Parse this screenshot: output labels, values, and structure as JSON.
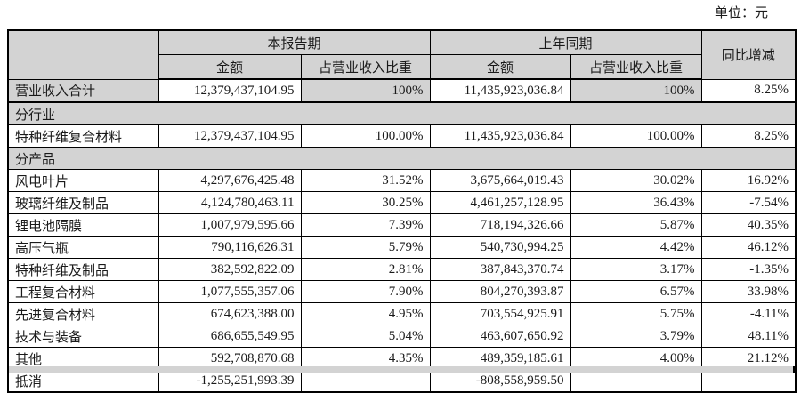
{
  "unit_label": "单位：元",
  "colors": {
    "header_bg": "#d3d3d3",
    "row_bg": "#ffffff",
    "border": "#000000"
  },
  "table": {
    "header": {
      "current_period": "本报告期",
      "prior_period": "上年同期",
      "yoy_change": "同比增减",
      "amount": "金额",
      "revenue_share": "占营业收入比重"
    },
    "rows": [
      {
        "type": "total",
        "label": "营业收入合计",
        "cur_amount": "12,379,437,104.95",
        "cur_share": "100%",
        "prior_amount": "11,435,923,036.84",
        "prior_share": "100%",
        "yoy": "8.25%"
      },
      {
        "type": "section",
        "label": "分行业"
      },
      {
        "type": "data",
        "label": "特种纤维复合材料",
        "cur_amount": "12,379,437,104.95",
        "cur_share": "100.00%",
        "prior_amount": "11,435,923,036.84",
        "prior_share": "100.00%",
        "yoy": "8.25%"
      },
      {
        "type": "section",
        "label": "分产品"
      },
      {
        "type": "data",
        "label": "风电叶片",
        "cur_amount": "4,297,676,425.48",
        "cur_share": "31.52%",
        "prior_amount": "3,675,664,019.43",
        "prior_share": "30.02%",
        "yoy": "16.92%"
      },
      {
        "type": "data",
        "label": "玻璃纤维及制品",
        "cur_amount": "4,124,780,463.11",
        "cur_share": "30.25%",
        "prior_amount": "4,461,257,128.95",
        "prior_share": "36.43%",
        "yoy": "-7.54%"
      },
      {
        "type": "data",
        "label": "锂电池隔膜",
        "cur_amount": "1,007,979,595.66",
        "cur_share": "7.39%",
        "prior_amount": "718,194,326.66",
        "prior_share": "5.87%",
        "yoy": "40.35%"
      },
      {
        "type": "data",
        "label": "高压气瓶",
        "cur_amount": "790,116,626.31",
        "cur_share": "5.79%",
        "prior_amount": "540,730,994.25",
        "prior_share": "4.42%",
        "yoy": "46.12%"
      },
      {
        "type": "data",
        "label": "特种纤维及制品",
        "cur_amount": "382,592,822.09",
        "cur_share": "2.81%",
        "prior_amount": "387,843,370.74",
        "prior_share": "3.17%",
        "yoy": "-1.35%"
      },
      {
        "type": "data",
        "label": "工程复合材料",
        "cur_amount": "1,077,555,357.06",
        "cur_share": "7.90%",
        "prior_amount": "804,270,393.87",
        "prior_share": "6.57%",
        "yoy": "33.98%"
      },
      {
        "type": "data",
        "label": "先进复合材料",
        "cur_amount": "674,623,388.00",
        "cur_share": "4.95%",
        "prior_amount": "703,554,925.91",
        "prior_share": "5.75%",
        "yoy": "-4.11%"
      },
      {
        "type": "data",
        "label": "技术与装备",
        "cur_amount": "686,655,549.95",
        "cur_share": "5.04%",
        "prior_amount": "463,607,650.92",
        "prior_share": "3.79%",
        "yoy": "48.11%"
      },
      {
        "type": "data",
        "label": "其他",
        "cur_amount": "592,708,870.68",
        "cur_share": "4.35%",
        "prior_amount": "489,359,185.61",
        "prior_share": "4.00%",
        "yoy": "21.12%"
      },
      {
        "type": "data",
        "label": "抵消",
        "cur_amount": "-1,255,251,993.39",
        "cur_share": "",
        "prior_amount": "-808,558,959.50",
        "prior_share": "",
        "yoy": ""
      }
    ]
  }
}
